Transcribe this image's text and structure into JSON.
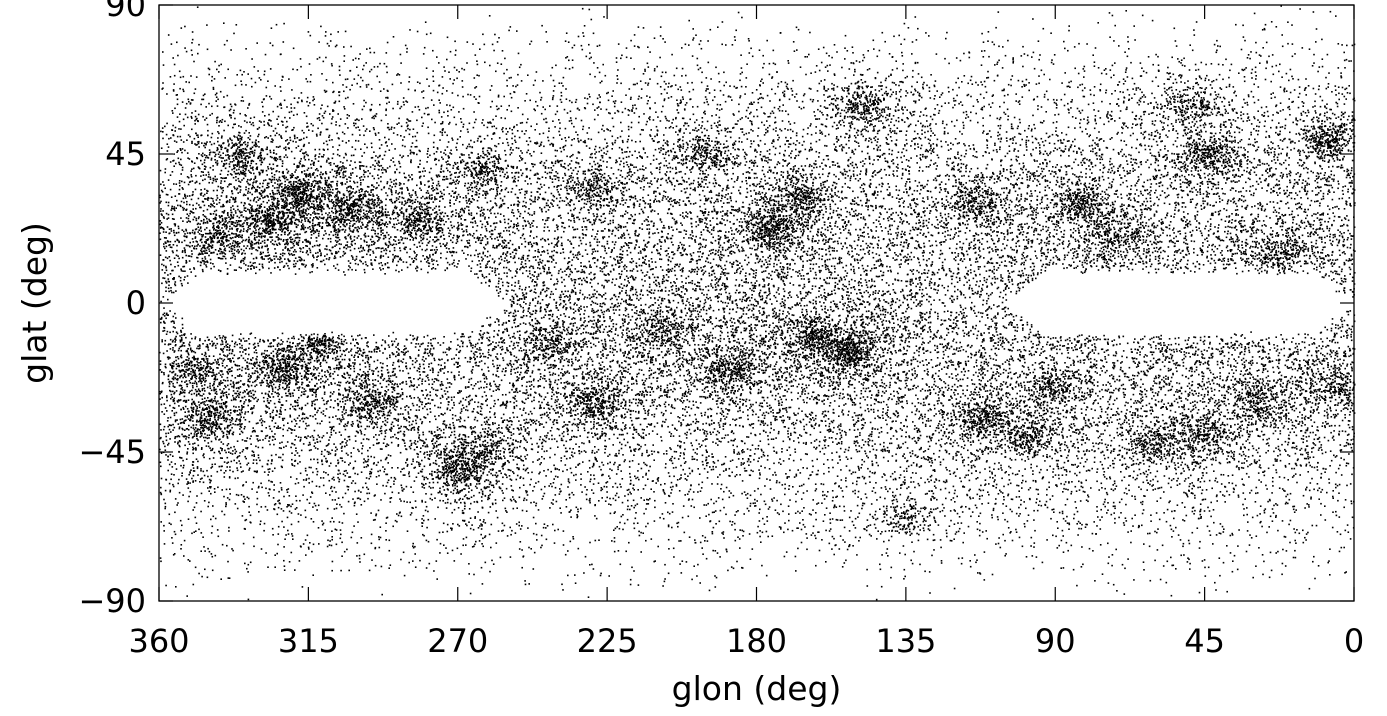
{
  "chart_data": {
    "type": "scatter",
    "title": "",
    "xlabel": "glon (deg)",
    "ylabel": "glat (deg)",
    "xlim": [
      360,
      0
    ],
    "ylim": [
      -90,
      90
    ],
    "x_reversed": true,
    "x_ticks": [
      360,
      315,
      270,
      225,
      180,
      135,
      90,
      45,
      0
    ],
    "y_ticks": [
      90,
      45,
      0,
      -45,
      -90
    ],
    "x_tick_labels": [
      "360",
      "315",
      "270",
      "225",
      "180",
      "135",
      "90",
      "45",
      "0"
    ],
    "y_tick_labels": [
      "90",
      "45",
      "0",
      "−45",
      "−90"
    ],
    "grid": false,
    "point_color": "#000000",
    "background_color": "#ffffff",
    "description_note": "Dense all-sky galaxy distribution; empty zone of avoidance near glat 0 for glon > 255 and glon < 105.",
    "density_clusters": [
      {
        "glon": 318,
        "glat": 33,
        "strength": 1.0
      },
      {
        "glon": 302,
        "glat": 28,
        "strength": 0.8
      },
      {
        "glon": 327,
        "glat": 25,
        "strength": 0.7
      },
      {
        "glon": 282,
        "glat": 25,
        "strength": 0.6
      },
      {
        "glon": 335,
        "glat": 45,
        "strength": 0.6
      },
      {
        "glon": 343,
        "glat": 20,
        "strength": 0.5
      },
      {
        "glon": 230,
        "glat": 35,
        "strength": 0.5
      },
      {
        "glon": 196,
        "glat": 45,
        "strength": 0.6
      },
      {
        "glon": 176,
        "glat": 23,
        "strength": 0.9
      },
      {
        "glon": 166,
        "glat": 32,
        "strength": 0.7
      },
      {
        "glon": 148,
        "glat": 60,
        "strength": 0.8
      },
      {
        "glon": 115,
        "glat": 30,
        "strength": 0.6
      },
      {
        "glon": 82,
        "glat": 30,
        "strength": 0.7
      },
      {
        "glon": 72,
        "glat": 20,
        "strength": 0.6
      },
      {
        "glon": 44,
        "glat": 45,
        "strength": 0.8
      },
      {
        "glon": 8,
        "glat": 50,
        "strength": 0.9
      },
      {
        "glon": 23,
        "glat": 15,
        "strength": 0.6
      },
      {
        "glon": 48,
        "glat": 60,
        "strength": 0.6
      },
      {
        "glon": 262,
        "glat": 40,
        "strength": 0.5
      },
      {
        "glon": 152,
        "glat": -15,
        "strength": 1.0
      },
      {
        "glon": 162,
        "glat": -10,
        "strength": 0.7
      },
      {
        "glon": 188,
        "glat": -20,
        "strength": 0.7
      },
      {
        "glon": 228,
        "glat": -30,
        "strength": 0.8
      },
      {
        "glon": 209,
        "glat": -8,
        "strength": 0.5
      },
      {
        "glon": 270,
        "glat": -50,
        "strength": 0.8
      },
      {
        "glon": 263,
        "glat": -45,
        "strength": 0.6
      },
      {
        "glon": 322,
        "glat": -20,
        "strength": 0.8
      },
      {
        "glon": 312,
        "glat": -10,
        "strength": 0.7
      },
      {
        "glon": 345,
        "glat": -35,
        "strength": 0.7
      },
      {
        "glon": 350,
        "glat": -20,
        "strength": 0.5
      },
      {
        "glon": 296,
        "glat": -30,
        "strength": 0.6
      },
      {
        "glon": 112,
        "glat": -35,
        "strength": 0.7
      },
      {
        "glon": 98,
        "glat": -40,
        "strength": 0.6
      },
      {
        "glon": 135,
        "glat": -65,
        "strength": 0.5
      },
      {
        "glon": 60,
        "glat": -42,
        "strength": 0.6
      },
      {
        "glon": 45,
        "glat": -40,
        "strength": 0.6
      },
      {
        "glon": 28,
        "glat": -30,
        "strength": 0.6
      },
      {
        "glon": 5,
        "glat": -25,
        "strength": 0.5
      },
      {
        "glon": 90,
        "glat": -25,
        "strength": 0.5
      },
      {
        "glon": 242,
        "glat": -12,
        "strength": 0.5
      }
    ],
    "zone_of_avoidance": [
      {
        "glon_min": 255,
        "glon_max": 360,
        "glat_halfwidth": 10
      },
      {
        "glon_min": 0,
        "glon_max": 105,
        "glat_halfwidth": 10
      }
    ]
  }
}
